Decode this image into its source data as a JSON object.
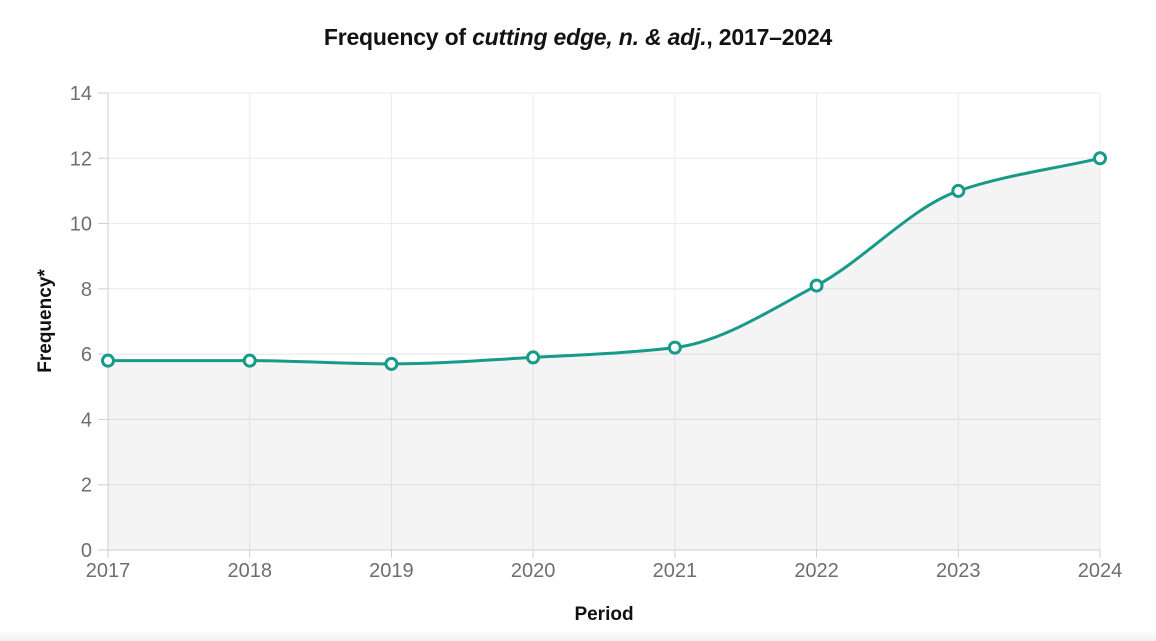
{
  "chart_data": {
    "type": "line",
    "title": "Frequency of cutting edge, n. & adj., 2017–2024",
    "title_prefix": "Frequency of ",
    "title_italic": "cutting edge, n. & adj.",
    "title_suffix": ", 2017–2024",
    "xlabel": "Period",
    "ylabel": "Frequency*",
    "categories": [
      "2017",
      "2018",
      "2019",
      "2020",
      "2021",
      "2022",
      "2023",
      "2024"
    ],
    "series": [
      {
        "name": "Frequency",
        "values": [
          5.8,
          5.8,
          5.7,
          5.9,
          6.2,
          8.1,
          11,
          12
        ]
      }
    ],
    "ylim": [
      0,
      14
    ],
    "yticks": [
      0,
      2,
      4,
      6,
      8,
      10,
      12,
      14
    ],
    "grid": true,
    "legend_position": "none",
    "smooth": true,
    "line_color": "#189a88",
    "point_fill": "#ffffff",
    "area_fill": "rgba(33,33,33,0.05)"
  }
}
